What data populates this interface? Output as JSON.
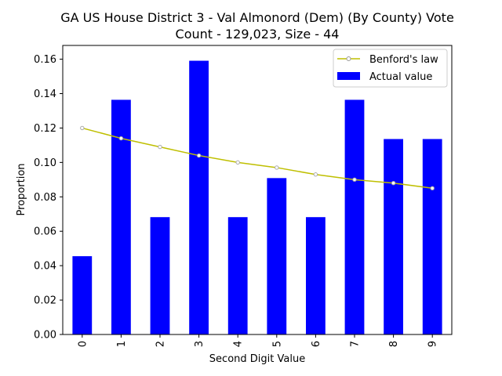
{
  "chart_data": {
    "type": "bar",
    "title_lines": [
      "GA US House District 3 - Val Almonord (Dem) (By County) Vote",
      "Count - 129,023, Size - 44"
    ],
    "xlabel": "Second Digit Value",
    "ylabel": "Proportion",
    "categories": [
      "0",
      "1",
      "2",
      "3",
      "4",
      "5",
      "6",
      "7",
      "8",
      "9"
    ],
    "ylim": [
      0,
      0.168
    ],
    "yticks": [
      0.0,
      0.02,
      0.04,
      0.06,
      0.08,
      0.1,
      0.12,
      0.14,
      0.16
    ],
    "ytick_labels": [
      "0.00",
      "0.02",
      "0.04",
      "0.06",
      "0.08",
      "0.10",
      "0.12",
      "0.14",
      "0.16"
    ],
    "legend_position": "top-right",
    "series": [
      {
        "name": "Actual value",
        "kind": "bar",
        "color": "#0000ff",
        "values": [
          0.0455,
          0.1364,
          0.0682,
          0.1591,
          0.0682,
          0.0909,
          0.0682,
          0.1364,
          0.1136,
          0.1136
        ]
      },
      {
        "name": "Benford's law",
        "kind": "line",
        "color": "#bfbf00",
        "marker_color": "#aaaaaa",
        "values": [
          0.12,
          0.114,
          0.109,
          0.104,
          0.1,
          0.097,
          0.093,
          0.09,
          0.088,
          0.085
        ]
      }
    ]
  }
}
